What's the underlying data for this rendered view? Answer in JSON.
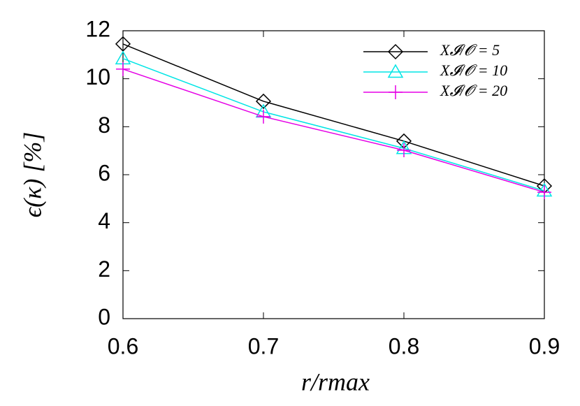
{
  "chart_data": {
    "type": "line",
    "xlabel": "r/rmax",
    "ylabel": "ϵ(κ) [%]",
    "x": [
      0.6,
      0.7,
      0.8,
      0.9
    ],
    "xlim": [
      0.6,
      0.9
    ],
    "xticks": [
      0.6,
      0.7,
      0.8,
      0.9
    ],
    "ylim": [
      0,
      12
    ],
    "yticks": [
      0,
      2,
      4,
      6,
      8,
      10,
      12
    ],
    "legend": "top-right",
    "series": [
      {
        "name": "X𝓘/𝓞 = 5",
        "color": "#000000",
        "marker": "diamond",
        "values": [
          11.45,
          9.06,
          7.4,
          5.53
        ]
      },
      {
        "name": "X𝓘/𝓞 = 10",
        "color": "#00e5e5",
        "marker": "triangle",
        "values": [
          10.84,
          8.62,
          7.1,
          5.33
        ]
      },
      {
        "name": "X𝓘/𝓞 = 20",
        "color": "#e500e5",
        "marker": "plus",
        "values": [
          10.4,
          8.42,
          7.02,
          5.27
        ]
      }
    ]
  }
}
